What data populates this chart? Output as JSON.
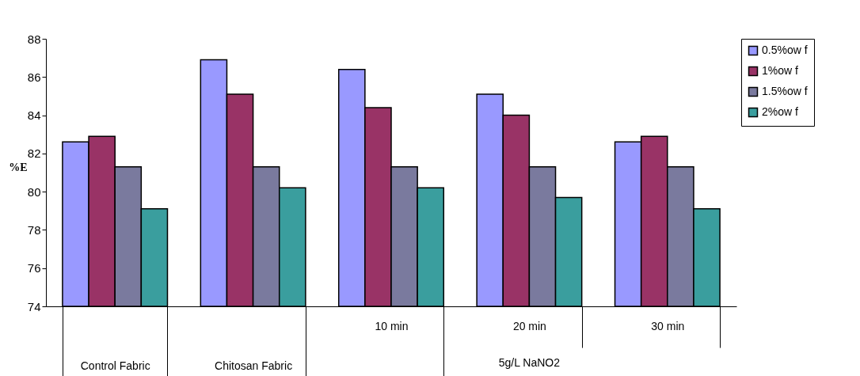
{
  "chart_data": {
    "type": "bar",
    "ylabel": "%E",
    "categories": [
      "Control Fabric",
      "Chitosan Fabric",
      "10 min",
      "20 min",
      "30 min"
    ],
    "series": [
      {
        "name": "0.5%ow f",
        "color": "#9999ff",
        "values": [
          82.6,
          86.9,
          86.4,
          85.1,
          82.6
        ]
      },
      {
        "name": "1%ow f",
        "color": "#993366",
        "values": [
          82.9,
          85.1,
          84.4,
          84.0,
          82.9
        ]
      },
      {
        "name": "1.5%ow f",
        "color": "#7a7a9e",
        "values": [
          81.3,
          81.3,
          81.3,
          81.3,
          81.3
        ]
      },
      {
        "name": "2%ow f",
        "color": "#3a9e9e",
        "values": [
          79.1,
          80.2,
          80.2,
          79.7,
          79.1
        ]
      }
    ],
    "ylim": [
      74,
      88
    ],
    "yticks": [
      74,
      76,
      78,
      80,
      82,
      84,
      86,
      88
    ],
    "annotations": [
      "5g/L NaNO2"
    ],
    "legend": "right"
  }
}
